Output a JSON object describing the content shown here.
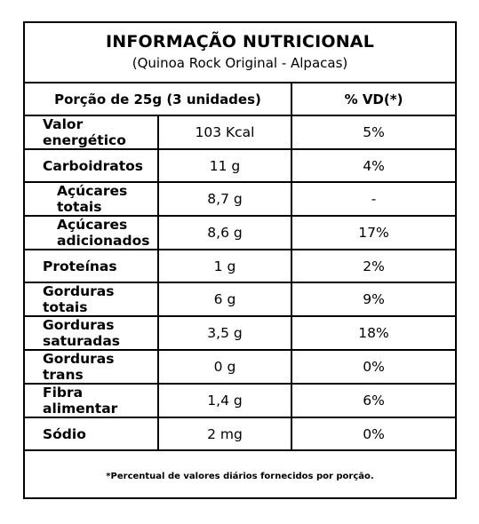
{
  "header": {
    "title": "INFORMAÇÃO NUTRICIONAL",
    "subtitle": "(Quinoa Rock Original - Alpacas)"
  },
  "table": {
    "portion_label": "Porção de 25g (3 unidades)",
    "vd_label": "% VD(*)",
    "rows": [
      {
        "nutrient": "Valor energético",
        "amount": "103 Kcal",
        "vd": "5%",
        "indent": false
      },
      {
        "nutrient": "Carboidratos",
        "amount": "11 g",
        "vd": "4%",
        "indent": false
      },
      {
        "nutrient": "Açúcares totais",
        "amount": "8,7 g",
        "vd": "-",
        "indent": true
      },
      {
        "nutrient": "Açúcares adicionados",
        "amount": "8,6 g",
        "vd": "17%",
        "indent": true
      },
      {
        "nutrient": "Proteínas",
        "amount": "1 g",
        "vd": "2%",
        "indent": false
      },
      {
        "nutrient": "Gorduras totais",
        "amount": "6 g",
        "vd": "9%",
        "indent": false
      },
      {
        "nutrient": "Gorduras saturadas",
        "amount": "3,5 g",
        "vd": "18%",
        "indent": false
      },
      {
        "nutrient": "Gorduras trans",
        "amount": "0 g",
        "vd": "0%",
        "indent": false
      },
      {
        "nutrient": "Fibra alimentar",
        "amount": "1,4 g",
        "vd": "6%",
        "indent": false
      },
      {
        "nutrient": "Sódio",
        "amount": "2 mg",
        "vd": "0%",
        "indent": false
      }
    ]
  },
  "footnote": "*Percentual de valores diários fornecidos por porção."
}
